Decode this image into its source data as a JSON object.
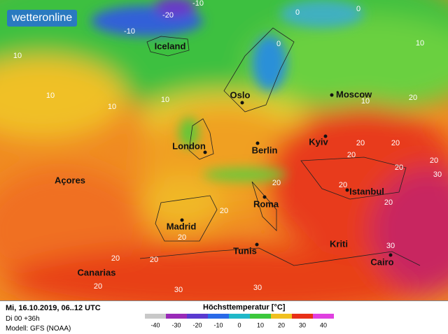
{
  "logo": "wetteronline",
  "cities": [
    "Iceland",
    "Oslo",
    "Moscow",
    "London",
    "Berlin",
    "Kyiv",
    "Açores",
    "Istanbul",
    "Madrid",
    "Roma",
    "Tunis",
    "Kriti",
    "Cairo",
    "Canarias"
  ],
  "contour_labels": [
    -10,
    -20,
    -10,
    0,
    0,
    0,
    10,
    10,
    10,
    10,
    10,
    10,
    20,
    20,
    20,
    20,
    20,
    20,
    20,
    20,
    20,
    20,
    20,
    20,
    20,
    20,
    30,
    30,
    30,
    30
  ],
  "footer": {
    "date": "Mi, 16.10.2019, 06..12 UTC",
    "run": "Di 00 +36h",
    "model": "Modell: GFS (NOAA)"
  },
  "legend": {
    "title": "Höchsttemperatur [°C]",
    "ticks": [
      -40,
      -30,
      -20,
      -10,
      0,
      10,
      20,
      30,
      40
    ],
    "colors": [
      "#c8c8c8",
      "#9a2ab8",
      "#5a3ad0",
      "#2a6ae8",
      "#20b8c8",
      "#3cc83c",
      "#f0c020",
      "#e83018",
      "#e040e0"
    ]
  }
}
